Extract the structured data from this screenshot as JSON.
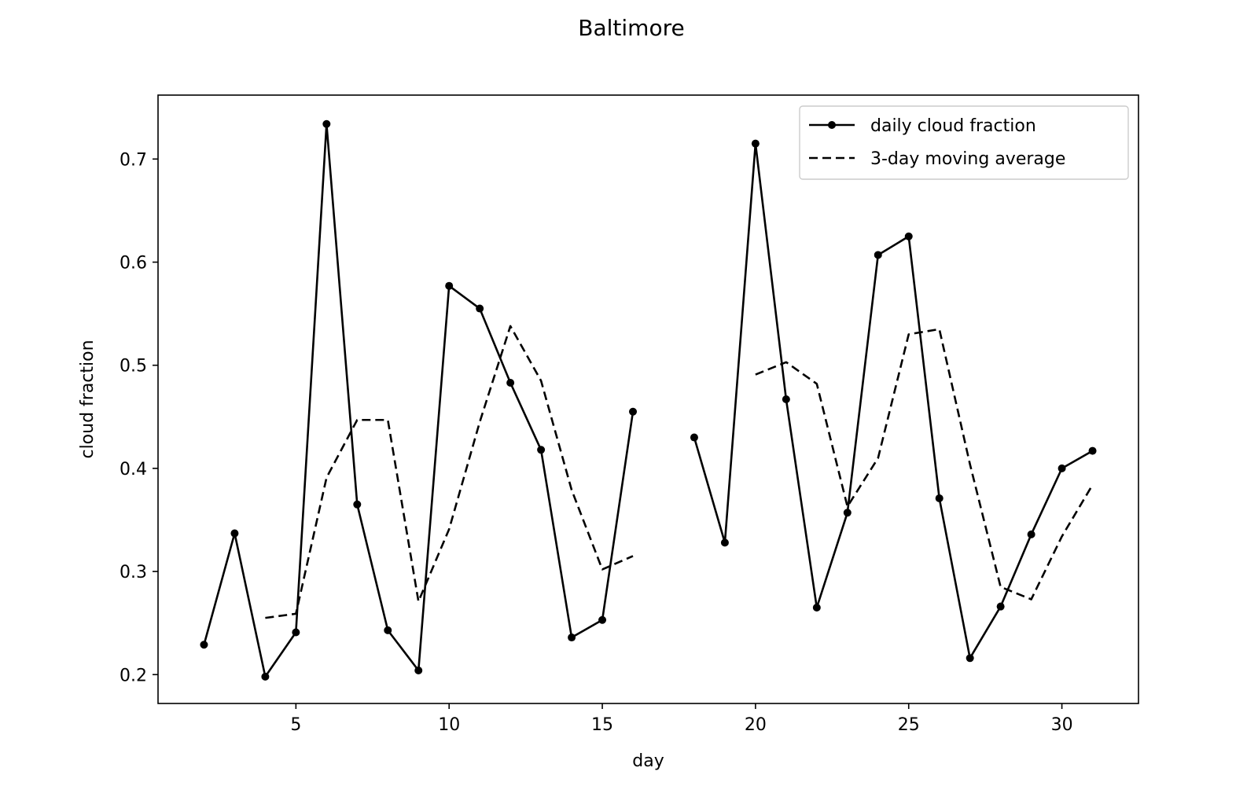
{
  "chart_data": {
    "type": "line",
    "title": "Baltimore",
    "xlabel": "day",
    "ylabel": "cloud fraction",
    "xlim": [
      0.5,
      32.5
    ],
    "ylim": [
      0.172,
      0.762
    ],
    "xticks": [
      5,
      10,
      15,
      20,
      25,
      30
    ],
    "yticks": [
      0.2,
      0.3,
      0.4,
      0.5,
      0.6,
      0.7
    ],
    "grid": false,
    "legend": "top-right",
    "series": [
      {
        "name": "daily cloud fraction",
        "style": "solid-marker",
        "color": "#000000",
        "points": [
          [
            2,
            0.229
          ],
          [
            3,
            0.337
          ],
          [
            4,
            0.198
          ],
          [
            5,
            0.241
          ],
          [
            6,
            0.734
          ],
          [
            7,
            0.365
          ],
          [
            8,
            0.243
          ],
          [
            9,
            0.204
          ],
          [
            10,
            0.577
          ],
          [
            11,
            0.555
          ],
          [
            12,
            0.483
          ],
          [
            13,
            0.418
          ],
          [
            14,
            0.236
          ],
          [
            15,
            0.253
          ],
          [
            16,
            0.455
          ],
          [
            17,
            null
          ],
          [
            18,
            0.43
          ],
          [
            19,
            0.328
          ],
          [
            20,
            0.715
          ],
          [
            21,
            0.467
          ],
          [
            22,
            0.265
          ],
          [
            23,
            0.357
          ],
          [
            24,
            0.607
          ],
          [
            25,
            0.625
          ],
          [
            26,
            0.371
          ],
          [
            27,
            0.216
          ],
          [
            28,
            0.266
          ],
          [
            29,
            0.336
          ],
          [
            30,
            0.4
          ],
          [
            31,
            0.417
          ]
        ]
      },
      {
        "name": "3-day moving average",
        "style": "dashed",
        "color": "#000000",
        "points": [
          [
            4,
            0.255
          ],
          [
            5,
            0.259
          ],
          [
            6,
            0.391
          ],
          [
            7,
            0.447
          ],
          [
            8,
            0.447
          ],
          [
            9,
            0.271
          ],
          [
            10,
            0.341
          ],
          [
            11,
            0.445
          ],
          [
            12,
            0.538
          ],
          [
            13,
            0.485
          ],
          [
            14,
            0.379
          ],
          [
            15,
            0.302
          ],
          [
            16,
            0.315
          ],
          [
            17,
            null
          ],
          [
            18,
            null
          ],
          [
            19,
            null
          ],
          [
            20,
            0.491
          ],
          [
            21,
            0.503
          ],
          [
            22,
            0.482
          ],
          [
            23,
            0.363
          ],
          [
            24,
            0.41
          ],
          [
            25,
            0.53
          ],
          [
            26,
            0.535
          ],
          [
            27,
            0.404
          ],
          [
            28,
            0.285
          ],
          [
            29,
            0.273
          ],
          [
            30,
            0.334
          ],
          [
            31,
            0.384
          ]
        ]
      }
    ]
  }
}
